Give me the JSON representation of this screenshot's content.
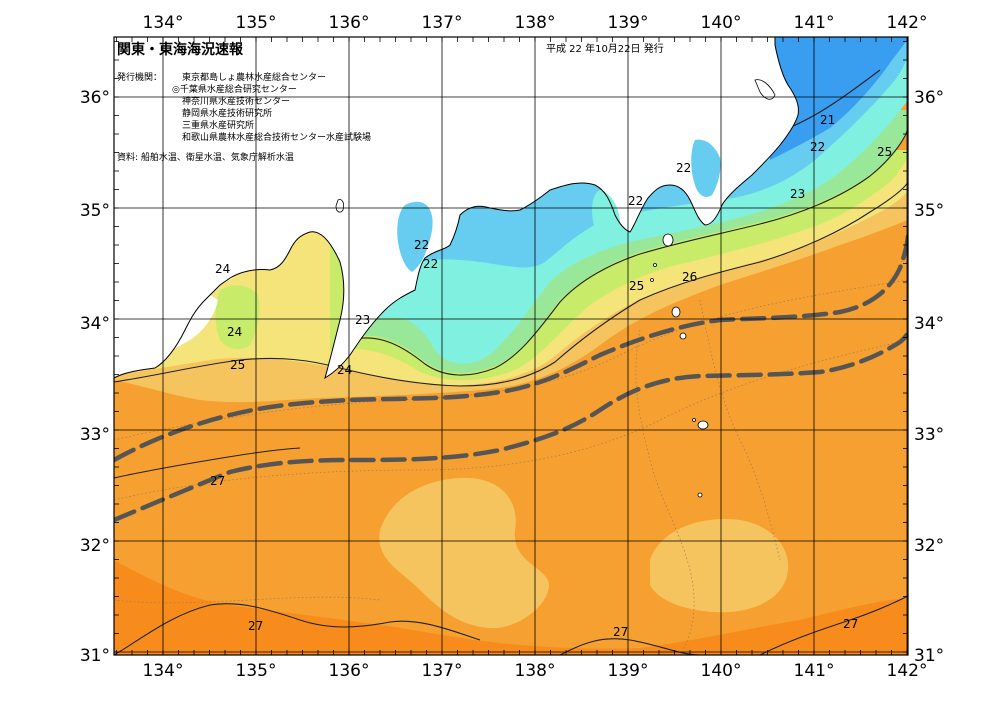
{
  "title": "関東・東海海況速報",
  "issue_date": "平成  22 年10月22日  発行",
  "issuers_label": "発行機関：",
  "issuers": [
    "東京都島しょ農林水産総合センター",
    "◎千葉県水産総合研究センター",
    "神奈川県水産技術センター",
    "静岡県水産技術研究所",
    "三重県水産研究所",
    "和歌山県農林水産総合技術センター水産試験場"
  ],
  "source": "資料: 船舶水温、衛星水温、気象庁解析水温",
  "lon_ticks": [
    "134°",
    "135°",
    "136°",
    "137°",
    "138°",
    "139°",
    "140°",
    "141°",
    "142°"
  ],
  "lat_ticks": [
    "36°",
    "35°",
    "34°",
    "33°",
    "32°",
    "31°"
  ],
  "colors": {
    "c21": "#3a9ef0",
    "c22": "#66ccf0",
    "c22b": "#80f0e0",
    "c23": "#99e899",
    "c24": "#c8ec6a",
    "c25": "#f4e47a",
    "c26": "#f6c45e",
    "c27": "#f5a030",
    "c28": "#f78c1c",
    "land": "#ffffff",
    "kuroshio": "#555555"
  },
  "contour_labels": [
    {
      "text": "21"
    },
    {
      "text": "22"
    },
    {
      "text": "25"
    },
    {
      "text": "22"
    },
    {
      "text": "23"
    },
    {
      "text": "22"
    },
    {
      "text": "22"
    },
    {
      "text": "22"
    },
    {
      "text": "26"
    },
    {
      "text": "25"
    },
    {
      "text": "24"
    },
    {
      "text": "24"
    },
    {
      "text": "25"
    },
    {
      "text": "23"
    },
    {
      "text": "24"
    },
    {
      "text": "27"
    },
    {
      "text": "27"
    },
    {
      "text": "27"
    },
    {
      "text": "27"
    }
  ]
}
